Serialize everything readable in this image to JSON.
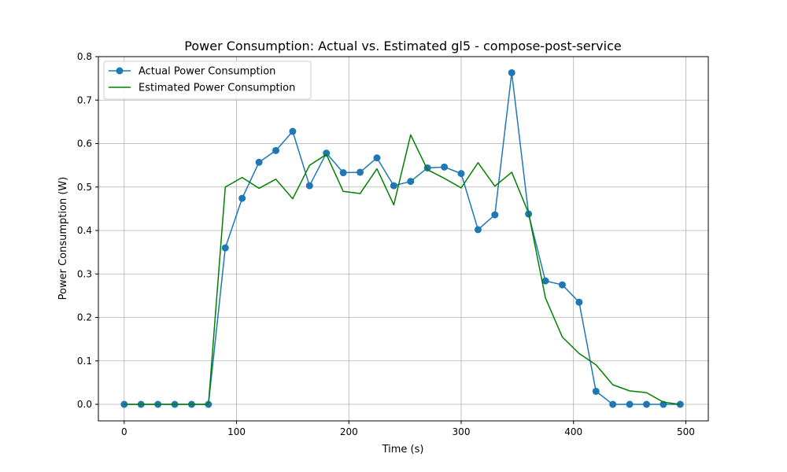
{
  "chart_data": {
    "type": "line",
    "title": "Power Consumption: Actual vs. Estimated gl5 - compose-post-service",
    "xlabel": "Time (s)",
    "ylabel": "Power Consumption (W)",
    "xlim": [
      -23,
      520
    ],
    "ylim": [
      -0.038,
      0.8
    ],
    "x_ticks": [
      0,
      100,
      200,
      300,
      400,
      500
    ],
    "y_ticks": [
      0.0,
      0.1,
      0.2,
      0.3,
      0.4,
      0.5,
      0.6,
      0.7,
      0.8
    ],
    "x_tick_labels": [
      "0",
      "100",
      "200",
      "300",
      "400",
      "500"
    ],
    "y_tick_labels": [
      "0.0",
      "0.1",
      "0.2",
      "0.3",
      "0.4",
      "0.5",
      "0.6",
      "0.7",
      "0.8"
    ],
    "grid": true,
    "legend_position": "upper-left",
    "series": [
      {
        "name": "Actual Power Consumption",
        "color": "#1f77b4",
        "marker": "circle",
        "x": [
          0,
          15,
          30,
          45,
          60,
          75,
          90,
          105,
          120,
          135,
          150,
          165,
          180,
          195,
          210,
          225,
          240,
          255,
          270,
          285,
          300,
          315,
          330,
          345,
          360,
          375,
          390,
          405,
          420,
          435,
          450,
          465,
          480,
          495
        ],
        "y": [
          0.0,
          0.0,
          0.0,
          0.0,
          0.0,
          0.0,
          0.36,
          0.474,
          0.557,
          0.584,
          0.628,
          0.503,
          0.578,
          0.533,
          0.534,
          0.567,
          0.503,
          0.513,
          0.544,
          0.546,
          0.531,
          0.402,
          0.436,
          0.763,
          0.438,
          0.284,
          0.275,
          0.235,
          0.03,
          0.0,
          0.0,
          0.0,
          0.0,
          0.0
        ]
      },
      {
        "name": "Estimated Power Consumption",
        "color": "#008000",
        "marker": "none",
        "x": [
          0,
          15,
          30,
          45,
          60,
          75,
          90,
          105,
          120,
          135,
          150,
          165,
          180,
          195,
          210,
          225,
          240,
          255,
          270,
          285,
          300,
          315,
          330,
          345,
          360,
          375,
          390,
          405,
          420,
          435,
          450,
          465,
          480,
          495
        ],
        "y": [
          0.0,
          0.0,
          0.0,
          0.0,
          0.0,
          0.0,
          0.5,
          0.522,
          0.497,
          0.518,
          0.473,
          0.55,
          0.575,
          0.49,
          0.485,
          0.542,
          0.459,
          0.62,
          0.54,
          0.52,
          0.498,
          0.556,
          0.502,
          0.534,
          0.44,
          0.245,
          0.155,
          0.117,
          0.091,
          0.045,
          0.031,
          0.027,
          0.005,
          0.0
        ]
      }
    ]
  }
}
